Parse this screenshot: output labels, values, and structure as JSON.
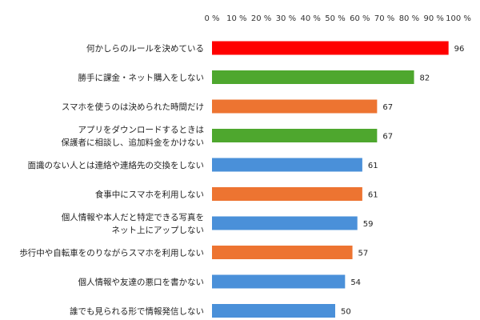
{
  "chart_data": {
    "type": "bar",
    "orientation": "horizontal",
    "x_axis_position": "top",
    "grid": false,
    "xlim": [
      0,
      100
    ],
    "x_ticks": [
      "0 %",
      "10 %",
      "20 %",
      "30 %",
      "40 %",
      "50 %",
      "60 %",
      "70 %",
      "80 %",
      "90 %",
      "100 %"
    ],
    "categories": [
      [
        "何かしらのルールを決めている"
      ],
      [
        "勝手に課金・ネット購入をしない"
      ],
      [
        "スマホを使うのは決められた時間だけ"
      ],
      [
        "アプリをダウンロードするときは",
        "保護者に相談し、追加料金をかけない"
      ],
      [
        "面識のない人とは連絡や連絡先の交換をしない"
      ],
      [
        "食事中にスマホを利用しない"
      ],
      [
        "個人情報や本人だと特定できる写真を",
        "ネット上にアップしない"
      ],
      [
        "歩行中や自転車をのりながらスマホを利用しない"
      ],
      [
        "個人情報や友達の悪口を書かない"
      ],
      [
        "誰でも見られる形で情報発信しない"
      ]
    ],
    "values": [
      96,
      82,
      67,
      67,
      61,
      61,
      59,
      57,
      54,
      50
    ],
    "value_labels": [
      "96",
      "82",
      "67",
      "67",
      "61",
      "61",
      "59",
      "57",
      "54",
      "50"
    ],
    "bar_colors": [
      "#ff0000",
      "#4ea72e",
      "#ed7431",
      "#4ea72e",
      "#4a90d9",
      "#ed7431",
      "#4a90d9",
      "#ed7431",
      "#4a90d9",
      "#4a90d9"
    ]
  }
}
